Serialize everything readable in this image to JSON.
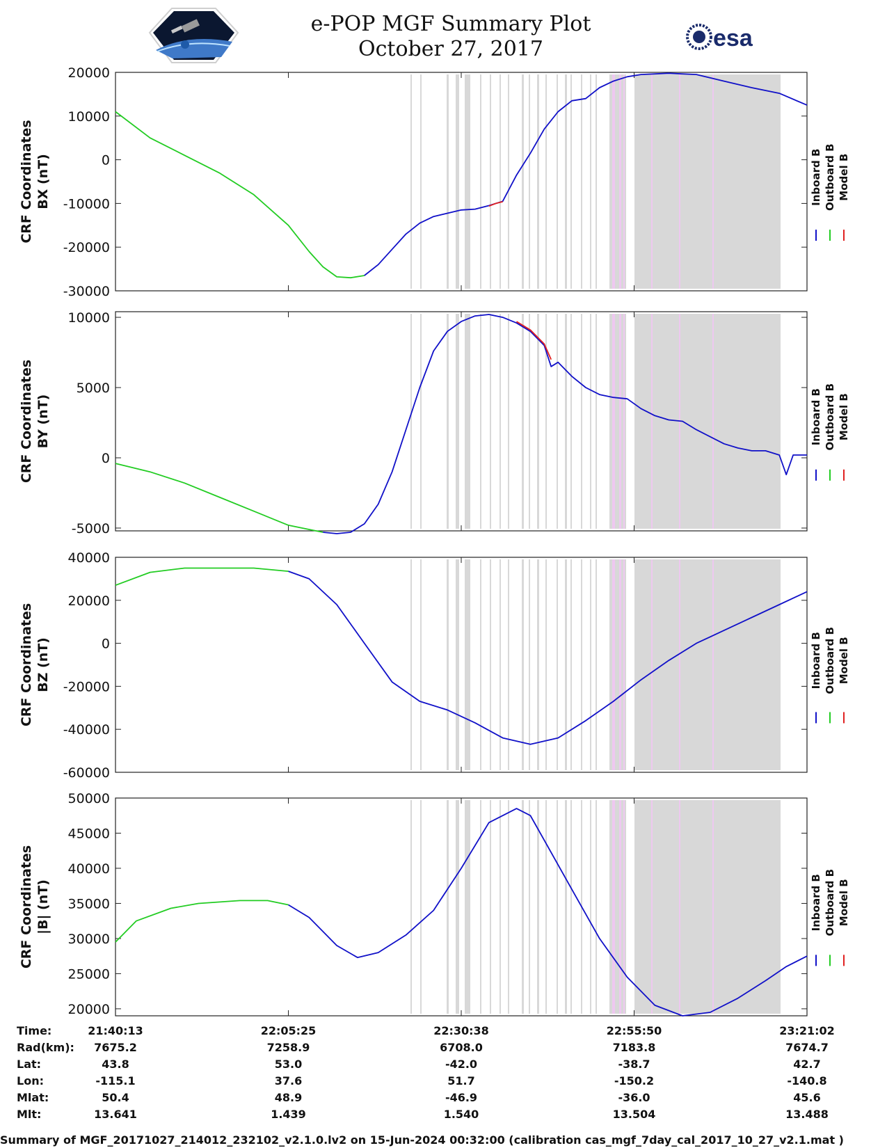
{
  "header": {
    "title_line1": "e-POP MGF Summary Plot",
    "title_line2": "October 27, 2017",
    "mission_logo": "cassiope-satellite-logo",
    "agency_logo_text": "esa"
  },
  "legend": [
    "Inboard B",
    "Outboard B",
    "Model B"
  ],
  "colors": {
    "inboard": "#1010c8",
    "outboard": "#22cc22",
    "model": "#e02020",
    "gap_gray": "#d8d8d8",
    "gap_pink": "#eec8f0"
  },
  "time_axis": {
    "start_seconds": 78013,
    "end_seconds": 84062,
    "tick_labels": [
      "21:40:13",
      "22:05:25",
      "22:30:38",
      "22:55:50",
      "23:21:02"
    ]
  },
  "info_table": {
    "row_labels": [
      "Time:",
      "Rad(km):",
      "Lat:",
      "Lon:",
      "Mlat:",
      "Mlt:"
    ],
    "columns": [
      [
        "21:40:13",
        "7675.2",
        "43.8",
        "-115.1",
        "50.4",
        "13.641"
      ],
      [
        "22:05:25",
        "7258.9",
        "53.0",
        "37.6",
        "48.9",
        "1.439"
      ],
      [
        "22:30:38",
        "6708.0",
        "-42.0",
        "51.7",
        "-46.9",
        "1.540"
      ],
      [
        "22:55:50",
        "7183.8",
        "-38.7",
        "-150.2",
        "-36.0",
        "13.504"
      ],
      [
        "23:21:02",
        "7674.7",
        "42.7",
        "-140.8",
        "45.6",
        "13.488"
      ]
    ]
  },
  "footer": "Summary of MGF_20171027_214012_232102_v2.1.0.lv2 on 15-Jun-2024 00:32:00 (calibration cas_mgf_7day_cal_2017_10_27_v2.1.mat )",
  "chart_data": [
    {
      "type": "line",
      "ylabel": [
        "CRF Coordinates",
        "BX (nT)"
      ],
      "ylim": [
        -30000,
        20000
      ],
      "yticks": [
        20000,
        10000,
        0,
        -10000,
        -20000,
        -30000
      ],
      "series": [
        {
          "name": "Outboard B",
          "x": [
            0,
            0.05,
            0.1,
            0.15,
            0.2,
            0.25,
            0.28,
            0.3,
            0.32,
            0.34,
            0.36
          ],
          "y": [
            11000,
            5000,
            1000,
            -3000,
            -8000,
            -15000,
            -21000,
            -24500,
            -26800,
            -27000,
            -26500
          ]
        },
        {
          "name": "Inboard B",
          "x": [
            0.36,
            0.38,
            0.4,
            0.42,
            0.44,
            0.46,
            0.5,
            0.52,
            0.54,
            0.56,
            0.58,
            0.6,
            0.62,
            0.64,
            0.66,
            0.68,
            0.7,
            0.72,
            0.74,
            0.76,
            0.8,
            0.84,
            0.88,
            0.92,
            0.96,
            1.0
          ],
          "y": [
            -26500,
            -24000,
            -20500,
            -17000,
            -14500,
            -13000,
            -11500,
            -11300,
            -10500,
            -9500,
            -3500,
            1500,
            7000,
            11000,
            13500,
            14000,
            16500,
            18000,
            19000,
            19500,
            19800,
            19500,
            18000,
            16500,
            15200,
            12500
          ]
        },
        {
          "name": "Model B",
          "x": [
            0.54,
            0.55,
            0.56
          ],
          "y": [
            -10600,
            -10000,
            -9600
          ]
        }
      ]
    },
    {
      "type": "line",
      "ylabel": [
        "CRF Coordinates",
        "BY (nT)"
      ],
      "ylim": [
        -5200,
        10400
      ],
      "yticks": [
        10000,
        5000,
        0,
        -5000
      ],
      "series": [
        {
          "name": "Outboard B",
          "x": [
            0,
            0.05,
            0.1,
            0.15,
            0.2,
            0.25,
            0.28,
            0.3
          ],
          "y": [
            -400,
            -1000,
            -1800,
            -2800,
            -3800,
            -4800,
            -5100,
            -5300
          ]
        },
        {
          "name": "Inboard B",
          "x": [
            0.3,
            0.32,
            0.34,
            0.36,
            0.38,
            0.4,
            0.42,
            0.44,
            0.46,
            0.48,
            0.5,
            0.52,
            0.54,
            0.56,
            0.58,
            0.6,
            0.62,
            0.63,
            0.64,
            0.66,
            0.68,
            0.7,
            0.72,
            0.74,
            0.76,
            0.78,
            0.8,
            0.82,
            0.84,
            0.86,
            0.88,
            0.9,
            0.92,
            0.94,
            0.96,
            0.97,
            0.98,
            1.0
          ],
          "y": [
            -5300,
            -5400,
            -5300,
            -4700,
            -3300,
            -1000,
            2000,
            5000,
            7600,
            9000,
            9700,
            10100,
            10200,
            10000,
            9600,
            9000,
            8000,
            6500,
            6800,
            5800,
            5000,
            4500,
            4300,
            4200,
            3500,
            3000,
            2700,
            2600,
            2000,
            1500,
            1000,
            700,
            500,
            500,
            200,
            -1200,
            200,
            200
          ]
        },
        {
          "name": "Model B",
          "x": [
            0.58,
            0.6,
            0.62,
            0.63
          ],
          "y": [
            9700,
            9100,
            8100,
            7000
          ]
        }
      ]
    },
    {
      "type": "line",
      "ylabel": [
        "CRF Coordinates",
        "BZ (nT)"
      ],
      "ylim": [
        -60000,
        40000
      ],
      "yticks": [
        40000,
        20000,
        0,
        -20000,
        -40000,
        -60000
      ],
      "series": [
        {
          "name": "Outboard B",
          "x": [
            0,
            0.05,
            0.1,
            0.15,
            0.2,
            0.25
          ],
          "y": [
            27000,
            33000,
            35000,
            35000,
            35000,
            33500
          ]
        },
        {
          "name": "Inboard B",
          "x": [
            0.25,
            0.28,
            0.32,
            0.36,
            0.4,
            0.44,
            0.48,
            0.52,
            0.56,
            0.6,
            0.64,
            0.68,
            0.72,
            0.76,
            0.8,
            0.84,
            0.88,
            0.92,
            0.96,
            1.0
          ],
          "y": [
            33500,
            30000,
            18000,
            0,
            -18000,
            -27000,
            -31000,
            -37000,
            -44000,
            -47000,
            -44000,
            -36000,
            -27000,
            -17000,
            -8000,
            0,
            6000,
            12000,
            18000,
            24000
          ]
        },
        {
          "name": "Model B",
          "x": [],
          "y": []
        }
      ]
    },
    {
      "type": "line",
      "ylabel": [
        "CRF Coordinates",
        "|B| (nT)"
      ],
      "ylim": [
        19000,
        50000
      ],
      "yticks": [
        50000,
        45000,
        40000,
        35000,
        30000,
        25000,
        20000
      ],
      "series": [
        {
          "name": "Outboard B",
          "x": [
            0,
            0.03,
            0.08,
            0.12,
            0.18,
            0.22,
            0.25
          ],
          "y": [
            29500,
            32500,
            34300,
            35000,
            35400,
            35400,
            34800
          ]
        },
        {
          "name": "Inboard B",
          "x": [
            0.25,
            0.28,
            0.32,
            0.35,
            0.38,
            0.42,
            0.46,
            0.5,
            0.54,
            0.58,
            0.6,
            0.62,
            0.66,
            0.7,
            0.74,
            0.78,
            0.82,
            0.86,
            0.9,
            0.94,
            0.97,
            1.0
          ],
          "y": [
            34800,
            33000,
            29000,
            27300,
            28000,
            30500,
            34000,
            40000,
            46500,
            48500,
            47500,
            44000,
            37000,
            30000,
            24500,
            20500,
            19000,
            19500,
            21500,
            24000,
            26000,
            27500
          ]
        },
        {
          "name": "Model B",
          "x": [],
          "y": []
        }
      ]
    }
  ]
}
